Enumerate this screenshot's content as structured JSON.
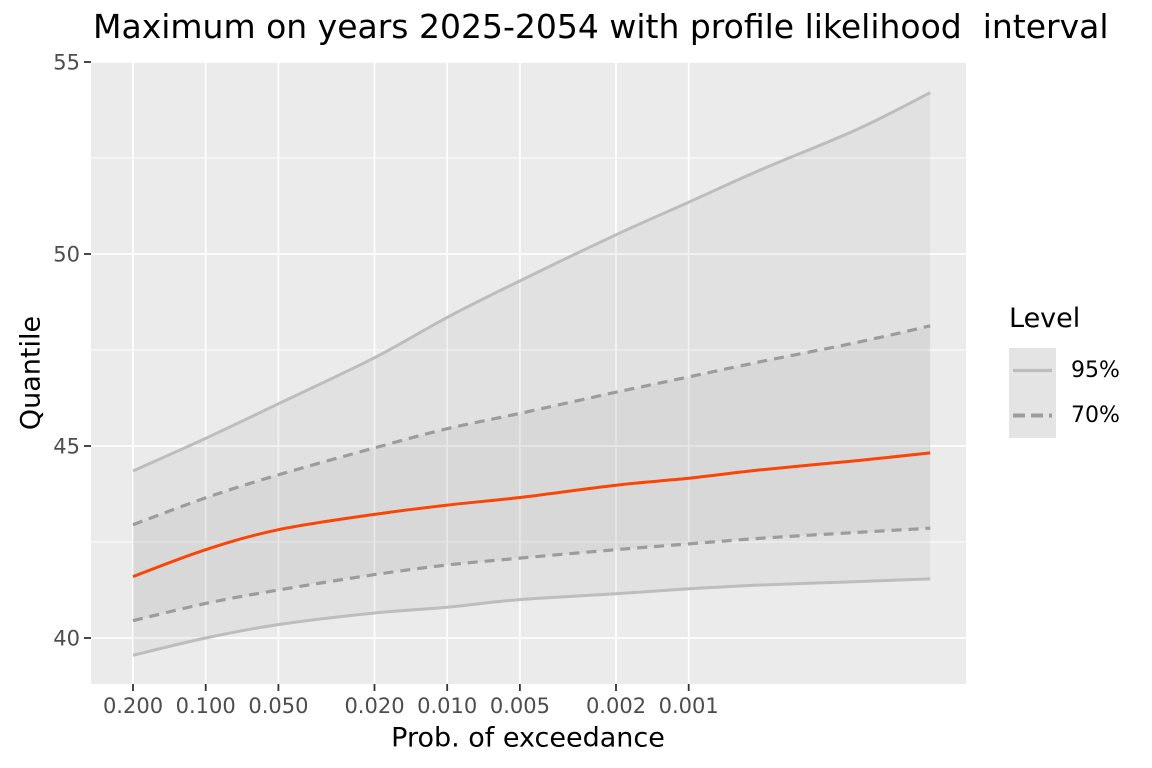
{
  "colors": {
    "page_bg": "#FFFFFF",
    "panel_bg": "#EBEBEB",
    "gridline": "#FFFFFF",
    "band_fill": "#A8A8A8",
    "band_opacity": 0.15,
    "ci95_line": "#BDBDBD",
    "ci70_line": "#9C9C9C",
    "estimate_line": "#FA4507",
    "tick_mark": "#333333",
    "tick_label": "#4D4D4D",
    "text": "#000000",
    "legend_key_bg": "#E4E4E4"
  },
  "chart_data": {
    "type": "line",
    "title": "Maximum on years 2025-2054 with profile likelihood  intervals",
    "xlabel": "Prob. of exceedance",
    "ylabel": "Quantile",
    "x_scale": "log10_reversed",
    "grid": "major-and-minor-horizontal, major-vertical, white on gray panel",
    "x_axis": {
      "ticks": [
        {
          "label": "0.200",
          "value": 0.2
        },
        {
          "label": "0.100",
          "value": 0.1
        },
        {
          "label": "0.050",
          "value": 0.05
        },
        {
          "label": "0.020",
          "value": 0.02
        },
        {
          "label": "0.010",
          "value": 0.01
        },
        {
          "label": "0.005",
          "value": 0.005
        },
        {
          "label": "0.002",
          "value": 0.002
        },
        {
          "label": "0.001",
          "value": 0.001
        }
      ],
      "range": [
        0.2,
        0.0001
      ]
    },
    "y_axis": {
      "ticks": [
        {
          "label": "55",
          "value": 55
        },
        {
          "label": "50",
          "value": 50
        },
        {
          "label": "45",
          "value": 45
        },
        {
          "label": "40",
          "value": 40
        }
      ],
      "minor": [
        52.5,
        47.5,
        42.5
      ],
      "range": [
        38.95,
        54.95
      ]
    },
    "x": [
      0.2,
      0.1,
      0.05,
      0.02,
      0.01,
      0.005,
      0.002,
      0.001,
      0.0005,
      0.0002,
      0.0001
    ],
    "series": [
      {
        "name": "ci95_upper",
        "style": "solid-gray",
        "values": [
          44.35,
          45.2,
          46.1,
          47.3,
          48.35,
          49.3,
          50.5,
          51.35,
          52.2,
          53.25,
          54.2
        ]
      },
      {
        "name": "ci70_upper",
        "style": "dashed-gray",
        "values": [
          42.95,
          43.65,
          44.25,
          44.95,
          45.45,
          45.85,
          46.4,
          46.8,
          47.2,
          47.7,
          48.13
        ]
      },
      {
        "name": "estimate",
        "style": "solid-orange",
        "values": [
          41.6,
          42.3,
          42.82,
          43.22,
          43.46,
          43.66,
          43.98,
          44.16,
          44.38,
          44.62,
          44.82
        ]
      },
      {
        "name": "ci70_lower",
        "style": "dashed-gray",
        "values": [
          40.45,
          40.9,
          41.25,
          41.65,
          41.9,
          42.08,
          42.3,
          42.45,
          42.6,
          42.75,
          42.86
        ]
      },
      {
        "name": "ci95_lower",
        "style": "solid-gray",
        "values": [
          39.55,
          40.0,
          40.35,
          40.65,
          40.8,
          41.0,
          41.15,
          41.28,
          41.38,
          41.47,
          41.54
        ]
      }
    ],
    "bands": [
      {
        "name": "band95",
        "upper": "ci95_upper",
        "lower": "ci95_lower"
      },
      {
        "name": "band70",
        "upper": "ci70_upper",
        "lower": "ci70_lower"
      }
    ],
    "legend": {
      "title": "Level",
      "position": "right",
      "entries": [
        {
          "label": "95%",
          "line_style": "solid"
        },
        {
          "label": "70%",
          "line_style": "dashed"
        }
      ]
    }
  }
}
